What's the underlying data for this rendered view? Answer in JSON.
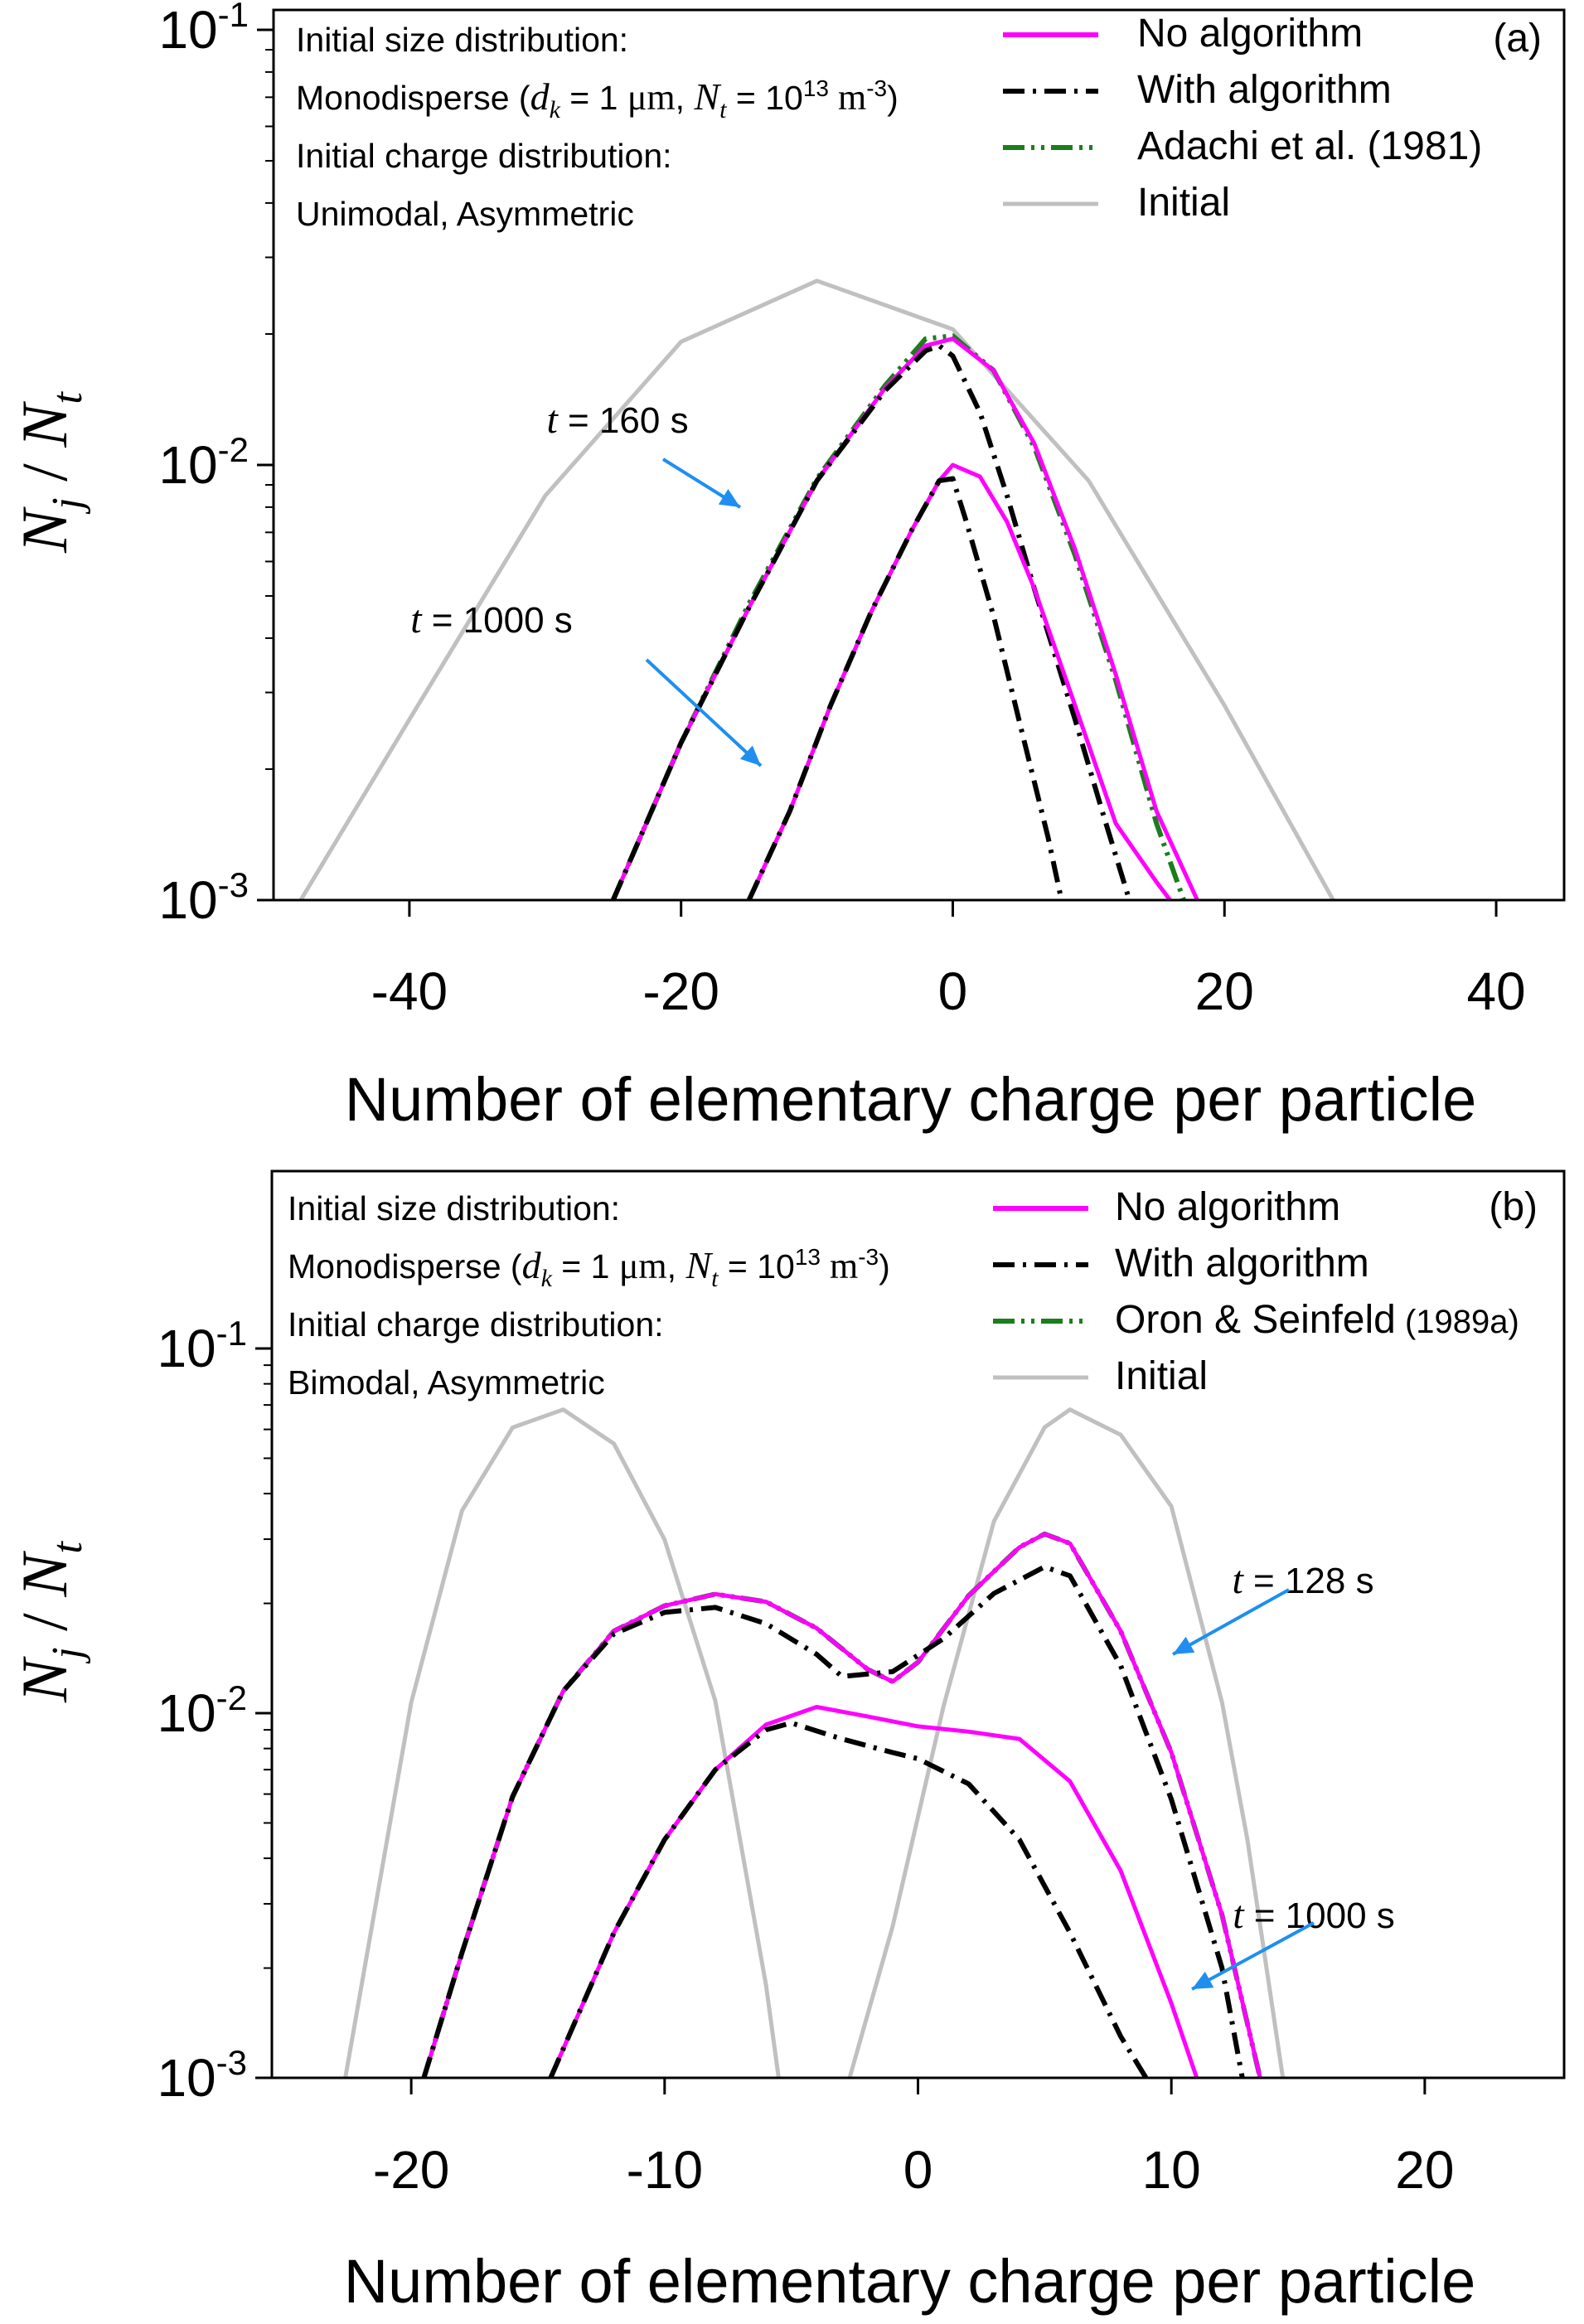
{
  "chart_data": [
    {
      "type": "line",
      "panel_label": "(a)",
      "xlabel": "Number of elementary charge per particle",
      "ylabel": "N_j / N_t",
      "xlim": [
        -50,
        45
      ],
      "ylim": [
        0.001,
        0.1
      ],
      "yscale": "log",
      "xticks": [
        -40,
        -20,
        0,
        20,
        40
      ],
      "xtick_labels": [
        "-40",
        "-20",
        "0",
        "20",
        "40"
      ],
      "yticks": [
        0.001,
        0.01,
        0.1
      ],
      "ytick_labels": [
        {
          "base": "10",
          "exp": "-3"
        },
        {
          "base": "10",
          "exp": "-2"
        },
        {
          "base": "10",
          "exp": "-1"
        }
      ],
      "info_lines": [
        "Initial size distribution:",
        "Monodisperse (d_k = 1 μm, N_t = 10^13 m^-3)",
        "Initial charge distribution:",
        "Unimodal, Asymmetric"
      ],
      "legend_position": "top-right",
      "legend": [
        {
          "name": "No algorithm",
          "color": "#ff00ff",
          "dash": "solid"
        },
        {
          "name": "With algorithm",
          "color": "#000000",
          "dash": "dash-dot"
        },
        {
          "name": "Adachi et al. (1981)",
          "color": "#1a7f1a",
          "dash": "dash-dot-dot"
        },
        {
          "name": "Initial",
          "color": "#c0c0c0",
          "dash": "solid"
        }
      ],
      "annotations": [
        {
          "label": "t = 160 s",
          "points_to": {
            "x": -17,
            "y": 0.008
          }
        },
        {
          "label": "t = 1000 s",
          "points_to": {
            "x": -14,
            "y": 0.0018
          }
        }
      ],
      "series": [
        {
          "name": "Initial",
          "color": "#c0c0c0",
          "points": [
            [
              -48,
              0.001
            ],
            [
              -40,
              0.0026
            ],
            [
              -30,
              0.0085
            ],
            [
              -20,
              0.0192
            ],
            [
              -10,
              0.0265
            ],
            [
              0,
              0.0205
            ],
            [
              10,
              0.0092
            ],
            [
              20,
              0.0028
            ],
            [
              28,
              0.001
            ]
          ]
        },
        {
          "name": "Adachi et al. (1981) t=160s",
          "color": "#1a7f1a",
          "points": [
            [
              -25,
              0.001
            ],
            [
              -20,
              0.0023
            ],
            [
              -15,
              0.0048
            ],
            [
              -10,
              0.0093
            ],
            [
              -5,
              0.0152
            ],
            [
              -2,
              0.0195
            ],
            [
              0,
              0.0198
            ],
            [
              3,
              0.0165
            ],
            [
              6,
              0.011
            ],
            [
              9,
              0.0062
            ],
            [
              12,
              0.0032
            ],
            [
              15,
              0.0015
            ],
            [
              17,
              0.001
            ]
          ]
        },
        {
          "name": "No algorithm t=160s",
          "color": "#ff00ff",
          "points": [
            [
              -25,
              0.001
            ],
            [
              -20,
              0.0023
            ],
            [
              -15,
              0.0047
            ],
            [
              -10,
              0.0092
            ],
            [
              -5,
              0.015
            ],
            [
              -2,
              0.0188
            ],
            [
              0,
              0.0195
            ],
            [
              3,
              0.0165
            ],
            [
              6,
              0.0112
            ],
            [
              9,
              0.0064
            ],
            [
              12,
              0.0033
            ],
            [
              15,
              0.0016
            ],
            [
              18,
              0.001
            ]
          ]
        },
        {
          "name": "With algorithm t=160s",
          "color": "#000000",
          "points": [
            [
              -25,
              0.001
            ],
            [
              -20,
              0.0023
            ],
            [
              -15,
              0.0047
            ],
            [
              -10,
              0.0092
            ],
            [
              -5,
              0.0148
            ],
            [
              -2,
              0.0183
            ],
            [
              -1,
              0.0188
            ],
            [
              0,
              0.0178
            ],
            [
              2,
              0.0132
            ],
            [
              4,
              0.0085
            ],
            [
              6,
              0.0052
            ],
            [
              9,
              0.0026
            ],
            [
              11,
              0.0016
            ],
            [
              13,
              0.001
            ]
          ]
        },
        {
          "name": "No algorithm t=1000s",
          "color": "#ff00ff",
          "points": [
            [
              -15,
              0.001
            ],
            [
              -12,
              0.0016
            ],
            [
              -9,
              0.0028
            ],
            [
              -6,
              0.0046
            ],
            [
              -3,
              0.0071
            ],
            [
              -1,
              0.0092
            ],
            [
              0,
              0.01
            ],
            [
              2,
              0.0094
            ],
            [
              4,
              0.0074
            ],
            [
              6,
              0.0052
            ],
            [
              9,
              0.0028
            ],
            [
              12,
              0.0015
            ],
            [
              15,
              0.0011
            ],
            [
              16,
              0.001
            ]
          ]
        },
        {
          "name": "With algorithm t=1000s",
          "color": "#000000",
          "points": [
            [
              -15,
              0.001
            ],
            [
              -12,
              0.0016
            ],
            [
              -9,
              0.0028
            ],
            [
              -6,
              0.0046
            ],
            [
              -3,
              0.0071
            ],
            [
              -1,
              0.0092
            ],
            [
              0,
              0.0093
            ],
            [
              1,
              0.0074
            ],
            [
              3,
              0.0045
            ],
            [
              5,
              0.0025
            ],
            [
              7,
              0.0014
            ],
            [
              8,
              0.001
            ]
          ]
        }
      ]
    },
    {
      "type": "line",
      "panel_label": "(b)",
      "xlabel": "Number of elementary charge per particle",
      "ylabel": "N_j / N_t",
      "xlim": [
        -25.5,
        25.5
      ],
      "ylim": [
        0.001,
        0.18
      ],
      "yscale": "log",
      "xticks": [
        -20,
        -10,
        0,
        10,
        20
      ],
      "xtick_labels": [
        "-20",
        "-10",
        "0",
        "10",
        "20"
      ],
      "yticks": [
        0.001,
        0.01,
        0.1
      ],
      "ytick_labels": [
        {
          "base": "10",
          "exp": "-3"
        },
        {
          "base": "10",
          "exp": "-2"
        },
        {
          "base": "10",
          "exp": "-1"
        }
      ],
      "info_lines": [
        "Initial size distribution:",
        "Monodisperse (d_k = 1 μm, N_t = 10^13 m^-3)",
        "Initial charge distribution:",
        "Bimodal, Asymmetric"
      ],
      "legend_position": "top-right",
      "legend": [
        {
          "name": "No algorithm",
          "color": "#ff00ff",
          "dash": "solid"
        },
        {
          "name": "With algorithm",
          "color": "#000000",
          "dash": "dash-dot"
        },
        {
          "name": "Oron & Seinfeld (1989a)",
          "color": "#1a7f1a",
          "dash": "dash-dot-dot"
        },
        {
          "name": "Initial",
          "color": "#c0c0c0",
          "dash": "solid"
        }
      ],
      "annotations": [
        {
          "label": "t = 128 s",
          "points_to": {
            "x": 10,
            "y": 0.021
          }
        },
        {
          "label": "t = 1000 s",
          "points_to": {
            "x": 11,
            "y": 0.0028
          }
        }
      ],
      "series": [
        {
          "name": "Initial (left mode)",
          "color": "#c0c0c0",
          "points": [
            [
              -22.6,
              0.001
            ],
            [
              -20,
              0.0107
            ],
            [
              -18,
              0.0359
            ],
            [
              -16,
              0.0607
            ],
            [
              -14,
              0.068
            ],
            [
              -12,
              0.0548
            ],
            [
              -10,
              0.0299
            ],
            [
              -8,
              0.0108
            ],
            [
              -6,
              0.0018
            ],
            [
              -5.5,
              0.001
            ]
          ]
        },
        {
          "name": "Initial (right mode)",
          "color": "#c0c0c0",
          "points": [
            [
              -2.7,
              0.001
            ],
            [
              -1,
              0.0026
            ],
            [
              1,
              0.0104
            ],
            [
              3,
              0.0336
            ],
            [
              5,
              0.0608
            ],
            [
              6,
              0.068
            ],
            [
              8,
              0.058
            ],
            [
              10,
              0.0369
            ],
            [
              12,
              0.0107
            ],
            [
              13,
              0.0045
            ],
            [
              14.4,
              0.001
            ]
          ]
        },
        {
          "name": "Oron & Seinfeld (1989a) t=128s",
          "color": "#1a7f1a",
          "points": [
            [
              -19.5,
              0.001
            ],
            [
              -18,
              0.0022
            ],
            [
              -16,
              0.0059
            ],
            [
              -14,
              0.0115
            ],
            [
              -12,
              0.0168
            ],
            [
              -10,
              0.0197
            ],
            [
              -8,
              0.0212
            ],
            [
              -6,
              0.0202
            ],
            [
              -4,
              0.0171
            ],
            [
              -2,
              0.0132
            ],
            [
              -1,
              0.0122
            ],
            [
              0,
              0.0138
            ],
            [
              2,
              0.021
            ],
            [
              4,
              0.0285
            ],
            [
              5,
              0.031
            ],
            [
              6,
              0.0292
            ],
            [
              8,
              0.0168
            ],
            [
              10,
              0.0078
            ],
            [
              12,
              0.0028
            ],
            [
              13.5,
              0.001
            ]
          ]
        },
        {
          "name": "No algorithm t=128s",
          "color": "#ff00ff",
          "points": [
            [
              -19.5,
              0.001
            ],
            [
              -18,
              0.0022
            ],
            [
              -16,
              0.0059
            ],
            [
              -14,
              0.0115
            ],
            [
              -12,
              0.0168
            ],
            [
              -10,
              0.0197
            ],
            [
              -8,
              0.0212
            ],
            [
              -6,
              0.0202
            ],
            [
              -4,
              0.0171
            ],
            [
              -2,
              0.0132
            ],
            [
              -1,
              0.0122
            ],
            [
              0,
              0.0138
            ],
            [
              2,
              0.021
            ],
            [
              4,
              0.0285
            ],
            [
              5,
              0.031
            ],
            [
              6,
              0.0292
            ],
            [
              8,
              0.0168
            ],
            [
              10,
              0.0078
            ],
            [
              12,
              0.0028
            ],
            [
              13.5,
              0.001
            ]
          ]
        },
        {
          "name": "With algorithm t=128s",
          "color": "#000000",
          "points": [
            [
              -19.5,
              0.001
            ],
            [
              -18,
              0.0022
            ],
            [
              -16,
              0.0059
            ],
            [
              -14,
              0.0115
            ],
            [
              -12,
              0.0165
            ],
            [
              -10,
              0.0189
            ],
            [
              -8,
              0.0195
            ],
            [
              -6,
              0.0176
            ],
            [
              -4,
              0.0145
            ],
            [
              -3,
              0.0126
            ],
            [
              -1,
              0.013
            ],
            [
              1,
              0.016
            ],
            [
              3,
              0.0213
            ],
            [
              5,
              0.0252
            ],
            [
              6,
              0.0238
            ],
            [
              8,
              0.0135
            ],
            [
              10,
              0.0058
            ],
            [
              12,
              0.002
            ],
            [
              12.8,
              0.001
            ]
          ]
        },
        {
          "name": "No algorithm t=1000s",
          "color": "#ff00ff",
          "points": [
            [
              -14.5,
              0.001
            ],
            [
              -12,
              0.0025
            ],
            [
              -10,
              0.0045
            ],
            [
              -8,
              0.007
            ],
            [
              -6,
              0.0093
            ],
            [
              -4,
              0.0104
            ],
            [
              -2,
              0.0098
            ],
            [
              0,
              0.0092
            ],
            [
              2,
              0.0089
            ],
            [
              4,
              0.0085
            ],
            [
              6,
              0.0065
            ],
            [
              8,
              0.0037
            ],
            [
              10,
              0.0016
            ],
            [
              11,
              0.001
            ]
          ]
        },
        {
          "name": "With algorithm t=1000s",
          "color": "#000000",
          "points": [
            [
              -14.5,
              0.001
            ],
            [
              -12,
              0.0025
            ],
            [
              -10,
              0.0045
            ],
            [
              -8,
              0.007
            ],
            [
              -6,
              0.009
            ],
            [
              -5,
              0.0094
            ],
            [
              -3,
              0.0085
            ],
            [
              -1,
              0.0078
            ],
            [
              0,
              0.0075
            ],
            [
              2,
              0.0064
            ],
            [
              4,
              0.0045
            ],
            [
              6,
              0.0025
            ],
            [
              8,
              0.0013
            ],
            [
              9,
              0.001
            ]
          ]
        }
      ]
    }
  ]
}
